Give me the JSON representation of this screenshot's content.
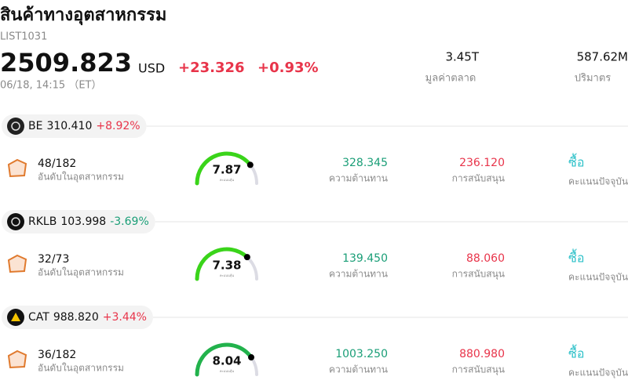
{
  "header": {
    "title": "สินค้าทางอุตสาหกรรม",
    "code": "LIST1031",
    "price": "2509.823",
    "currency": "USD",
    "change": "+23.326",
    "change_pct": "+0.93%",
    "time": "06/18, 14:15 （ET）",
    "market_cap": "3.45T",
    "market_cap_label": "มูลค่าตลาด",
    "volume": "587.62M",
    "volume_label": "ปริมาตร"
  },
  "stocks": [
    {
      "ticker": "BE",
      "price": "310.410",
      "change_pct": "+8.92%",
      "rank": "48/182",
      "rank_label": "อันดับในอุตสาหกรรม",
      "score": 7.87,
      "score_label": "คะแนนหุ้น",
      "resistance": "328.345",
      "resistance_label": "ความต้านทาน",
      "support": "236.120",
      "support_label": "การสนับสนุน",
      "signal": "ซื้อ",
      "signal_label": "คะแนนปัจจุบัน"
    },
    {
      "ticker": "RKLB",
      "price": "103.998",
      "change_pct": "-3.69%",
      "rank": "32/73",
      "rank_label": "อันดับในอุตสาหกรรม",
      "score": 7.38,
      "score_label": "คะแนนหุ้น",
      "resistance": "139.450",
      "resistance_label": "ความต้านทาน",
      "support": "88.060",
      "support_label": "การสนับสนุน",
      "signal": "ซื้อ",
      "signal_label": "คะแนนปัจจุบัน"
    },
    {
      "ticker": "CAT",
      "price": "988.820",
      "change_pct": "+3.44%",
      "rank": "36/182",
      "rank_label": "อันดับในอุตสาหกรรม",
      "score": 8.04,
      "score_label": "คะแนนหุ้น",
      "resistance": "1003.250",
      "resistance_label": "ความต้านทาน",
      "support": "880.980",
      "support_label": "การสนับสนุน",
      "signal": "ซื้อ",
      "signal_label": "คะแนนปัจจุบัน"
    }
  ]
}
